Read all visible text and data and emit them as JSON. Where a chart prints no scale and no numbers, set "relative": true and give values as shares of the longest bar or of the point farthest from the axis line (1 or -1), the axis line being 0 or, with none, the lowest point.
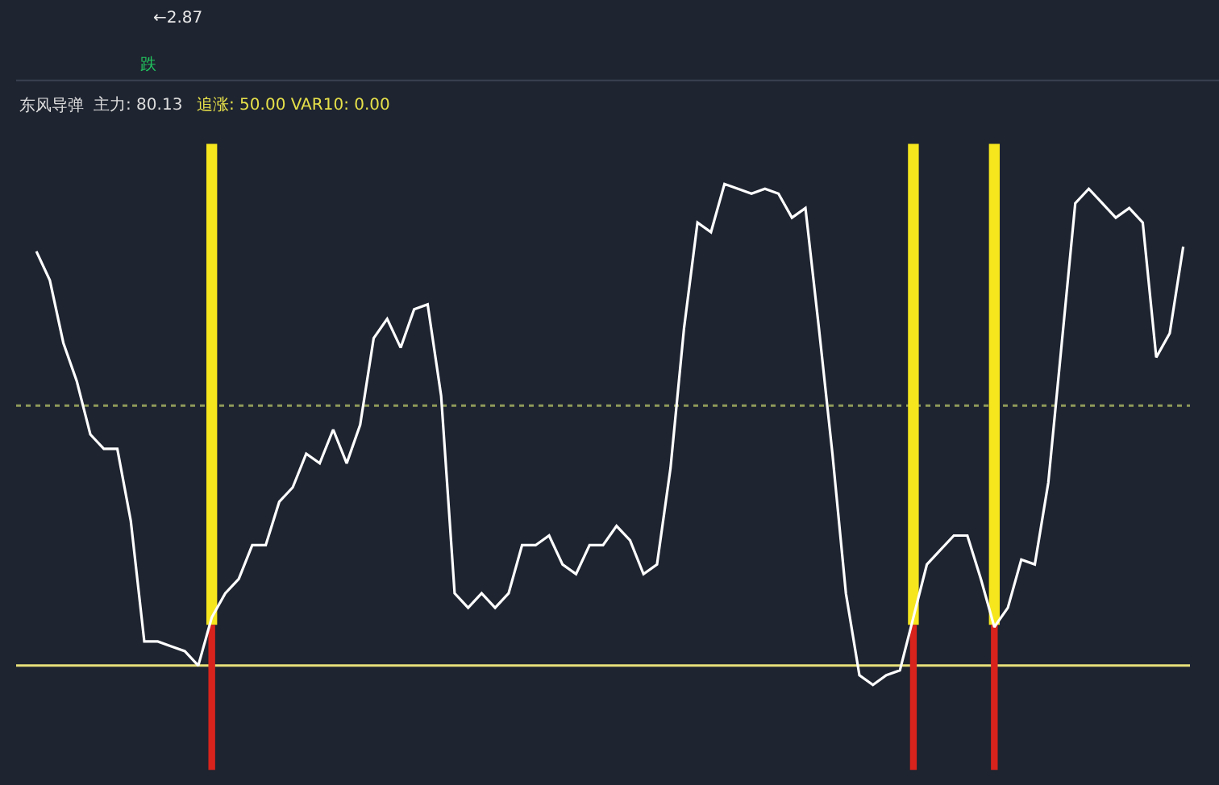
{
  "chart_data": {
    "type": "line",
    "title": "东风导弹",
    "relative": true,
    "categories": [
      null,
      null,
      null,
      null,
      null,
      null,
      null,
      null,
      null,
      null,
      null,
      null,
      null,
      null,
      null,
      null,
      null,
      null,
      null,
      null,
      null,
      null,
      null,
      null,
      null,
      null,
      null,
      null,
      null,
      null,
      null,
      null,
      null,
      null,
      null,
      null,
      null,
      null,
      null,
      null,
      null,
      null,
      null,
      null,
      null,
      null,
      null,
      null,
      null,
      null,
      null,
      null,
      null,
      null,
      null,
      null,
      null,
      null,
      null,
      null,
      null,
      null,
      null,
      null,
      null,
      null,
      null,
      null,
      null,
      null,
      null,
      null,
      null,
      null,
      null,
      null,
      null,
      null,
      null,
      null,
      null,
      null,
      null,
      null,
      null,
      null
    ],
    "series": [
      {
        "color": "#ffffff",
        "values": [
          0.86,
          0.8,
          0.67,
          0.59,
          0.48,
          0.45,
          0.45,
          0.3,
          0.05,
          0.05,
          0.04,
          0.03,
          0,
          0.1,
          0.15,
          0.18,
          0.25,
          0.25,
          0.34,
          0.37,
          0.44,
          0.42,
          0.49,
          0.42,
          0.5,
          0.68,
          0.72,
          0.66,
          0.74,
          0.75,
          0.56,
          0.15,
          0.12,
          0.15,
          0.12,
          0.15,
          0.25,
          0.25,
          0.27,
          0.21,
          0.19,
          0.25,
          0.25,
          0.29,
          0.26,
          0.19,
          0.21,
          0.41,
          0.7,
          0.92,
          0.9,
          1,
          0.99,
          0.98,
          0.99,
          0.98,
          0.93,
          0.95,
          0.7,
          0.44,
          0.15,
          -0.02,
          -0.04,
          -0.02,
          -0.01,
          0.1,
          0.21,
          0.24,
          0.27,
          0.27,
          0.18,
          0.08,
          0.12,
          0.22,
          0.21,
          0.38,
          0.67,
          0.96,
          0.99,
          0.96,
          0.93,
          0.95,
          0.92,
          0.64,
          0.69,
          0.87
        ]
      }
    ],
    "ref_lines": [
      {
        "axis": "y",
        "value": 0,
        "color": "#e8e07a",
        "line_style": "solid"
      },
      {
        "axis": "y",
        "value": 0.54,
        "color": "#8f9a5a",
        "line_style": "dotted"
      }
    ],
    "annotations": [
      "←2.87",
      "跌",
      "主力: 80.13",
      "追涨: 50.00 VAR10: 0.00"
    ]
  }
}
